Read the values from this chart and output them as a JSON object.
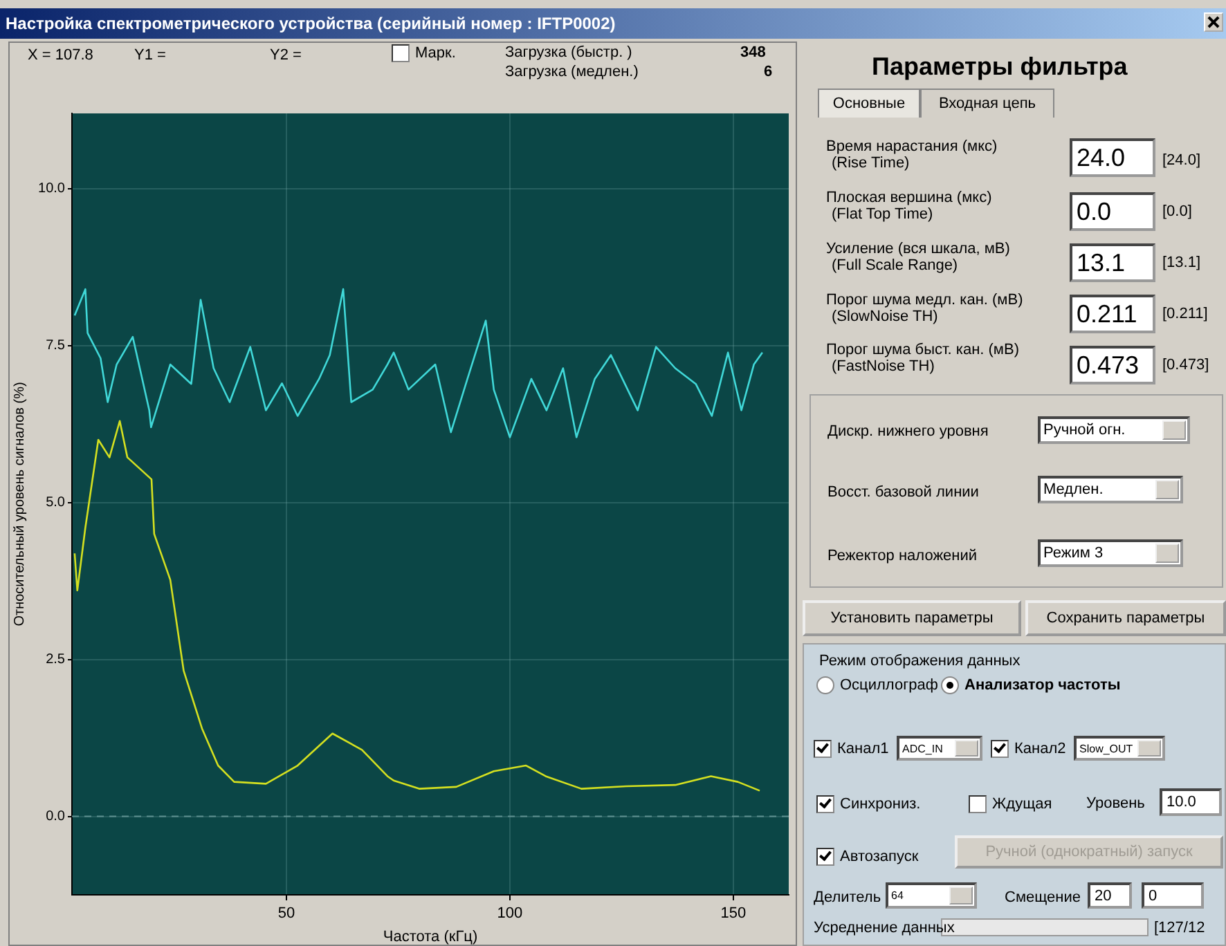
{
  "chart_data": {
    "type": "line",
    "title": "Настройка спектрометрического устройства (серийный номер : IFTP0002)",
    "xlabel": "Частота (кГц)",
    "ylabel": "Относительный уровень сигналов (%)",
    "xlim": [
      2,
      162.4
    ],
    "xticks": [
      50,
      100,
      150
    ],
    "ylim": [
      -1.25,
      11.2
    ],
    "yticks": [
      {
        "value": 0,
        "label": "0.0"
      },
      2.5,
      {
        "value": 5,
        "label": "5.0"
      },
      7.5,
      {
        "value": 10,
        "label": "10.0"
      }
    ],
    "grid": true,
    "legend": false,
    "marker": "none",
    "line_style": "solid",
    "ref_lines": [
      {
        "axis": "y",
        "value": 0,
        "color": "#5f9090",
        "line_style": "dashed"
      }
    ],
    "series": [
      {
        "color": "#40d8d8",
        "x": [
          2.6,
          5,
          5.5,
          8.4,
          10,
          12,
          15.6,
          19.3,
          19.7,
          24,
          28.7,
          30.8,
          33.7,
          37.3,
          41.9,
          45.4,
          49,
          52.5,
          57.3,
          59.7,
          62.7,
          64.5,
          69.3,
          72.6,
          74,
          77.3,
          83.3,
          86.8,
          90.5,
          94.6,
          96.4,
          100,
          104.8,
          108.2,
          111.9,
          114.9,
          119,
          122.6,
          128.6,
          132.7,
          137,
          141.6,
          145.2,
          148.8,
          151.8,
          154.6,
          156.5
        ],
        "values": [
          7.98,
          8.4,
          7.7,
          7.3,
          6.6,
          7.2,
          7.64,
          6.47,
          6.2,
          7.2,
          6.89,
          8.23,
          7.14,
          6.6,
          7.48,
          6.47,
          6.9,
          6.38,
          6.97,
          7.35,
          8.4,
          6.6,
          6.8,
          7.2,
          7.39,
          6.8,
          7.2,
          6.12,
          6.97,
          7.9,
          6.8,
          6.04,
          6.97,
          6.47,
          7.14,
          6.04,
          6.97,
          7.35,
          6.47,
          7.48,
          7.14,
          6.89,
          6.38,
          7.39,
          6.47,
          7.2,
          7.39
        ]
      },
      {
        "color": "#d4e020",
        "x": [
          2.6,
          3.2,
          5,
          7.9,
          10.4,
          12.7,
          14.4,
          19.8,
          20.4,
          24,
          27,
          31.1,
          34.7,
          38.3,
          45.4,
          52.5,
          60.3,
          66.9,
          72.6,
          74,
          79.7,
          88,
          96.4,
          103.6,
          108,
          116,
          126,
          137,
          145,
          151,
          155.9
        ],
        "values": [
          4.19,
          3.6,
          4.6,
          6.0,
          5.72,
          6.3,
          5.72,
          5.37,
          4.5,
          3.77,
          2.32,
          1.4,
          0.81,
          0.55,
          0.52,
          0.81,
          1.32,
          1.06,
          0.64,
          0.57,
          0.44,
          0.47,
          0.72,
          0.81,
          0.64,
          0.44,
          0.48,
          0.5,
          0.64,
          0.55,
          0.41
        ]
      }
    ],
    "annotations": [
      "X = 107.8",
      "Y1 =",
      "Y2 =",
      "Марк.",
      "Загрузка (быстр. )",
      "Загрузка (медлен.)",
      "348",
      "6",
      "Параметры фильтра",
      "Основные",
      "Входная цепь",
      "Время нарастания (мкс)",
      "(Rise Time)",
      "24.0",
      "[24.0]",
      "Плоская вершина (мкс)",
      "(Flat Top Time)",
      "0.0",
      "[0.0]",
      "Усиление (вся шкала, мВ)",
      "(Full Scale Range)",
      "13.1",
      "[13.1]",
      "Порог шума медл. кан. (мВ)",
      "(SlowNoise TH)",
      "0.211",
      "[0.211]",
      "Порог шума быст. кан. (мВ)",
      "(FastNoise TH)",
      "0.473",
      "[0.473]",
      "Дискр. нижнего уровня",
      "Ручной огн.",
      "Восст. базовой линии",
      "Медлен.",
      "Режектор наложений",
      "Режим 3",
      "Установить параметры",
      "Сохранить параметры",
      "Режим отображения данных",
      "Осциллограф",
      "Анализатор частоты",
      "Канал1",
      "ADC_IN",
      "Канал2",
      "Slow_OUT",
      "Синхрониз.",
      "Ждущая",
      "Уровень",
      "10.0",
      "Автозапуск",
      "Ручной (однократный) запуск",
      "Делитель",
      "64",
      "Смещение",
      "20",
      "0",
      "Усреднение данных",
      "[127/12"
    ]
  }
}
